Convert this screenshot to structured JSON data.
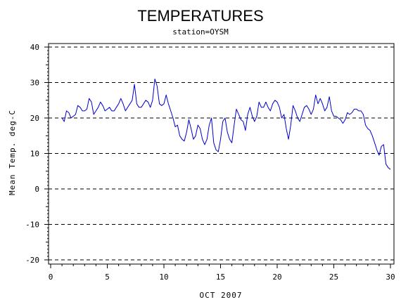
{
  "chart_data": {
    "type": "line",
    "title": "TEMPERATURES",
    "subtitle": "station=OYSM",
    "xlabel": "OCT 2007",
    "ylabel": "Mean Temp. deg-C",
    "xlim": [
      0,
      30
    ],
    "ylim": [
      -20,
      40
    ],
    "x_ticks": [
      0,
      5,
      10,
      15,
      20,
      25,
      30
    ],
    "y_ticks": [
      -20,
      -10,
      0,
      10,
      20,
      30,
      40
    ],
    "grid": "horizontal dashed at every 10 deg",
    "line_color": "#0000cc",
    "series": [
      {
        "x": [
          1.0,
          1.2,
          1.4,
          1.6,
          1.8,
          2.0,
          2.2,
          2.4,
          2.6,
          2.8,
          3.0,
          3.2,
          3.4,
          3.6,
          3.8,
          4.0,
          4.2,
          4.4,
          4.6,
          4.8,
          5.0,
          5.2,
          5.4,
          5.6,
          5.8,
          6.0,
          6.2,
          6.4,
          6.6,
          6.8,
          7.0,
          7.2,
          7.4,
          7.6,
          7.8,
          8.0,
          8.2,
          8.4,
          8.6,
          8.8,
          9.0,
          9.2,
          9.4,
          9.6,
          9.8,
          10.0,
          10.2,
          10.4,
          10.6,
          10.8,
          11.0,
          11.2,
          11.4,
          11.6,
          11.8,
          12.0,
          12.2,
          12.4,
          12.6,
          12.8,
          13.0,
          13.2,
          13.4,
          13.6,
          13.8,
          14.0,
          14.2,
          14.4,
          14.6,
          14.8,
          15.0,
          15.2,
          15.4,
          15.6,
          15.8,
          16.0,
          16.2,
          16.4,
          16.6,
          16.8,
          17.0,
          17.2,
          17.4,
          17.6,
          17.8,
          18.0,
          18.2,
          18.4,
          18.6,
          18.8,
          19.0,
          19.2,
          19.4,
          19.6,
          19.8,
          20.0,
          20.2,
          20.4,
          20.6,
          20.8,
          21.0,
          21.2,
          21.4,
          21.6,
          21.8,
          22.0,
          22.2,
          22.4,
          22.6,
          22.8,
          23.0,
          23.2,
          23.4,
          23.6,
          23.8,
          24.0,
          24.2,
          24.4,
          24.6,
          24.8,
          25.0,
          25.2,
          25.4,
          25.6,
          25.8,
          26.0,
          26.2,
          26.4,
          26.6,
          26.8,
          27.0,
          27.2,
          27.4,
          27.6,
          27.8,
          28.0,
          28.2,
          28.4,
          28.6,
          28.8,
          29.0,
          29.2,
          29.4,
          29.6,
          29.8,
          30.0
        ],
        "y": [
          20.0,
          19.0,
          22.0,
          21.5,
          20.0,
          20.5,
          21.0,
          23.5,
          23.0,
          22.0,
          22.0,
          22.5,
          25.5,
          24.5,
          21.0,
          22.0,
          23.0,
          24.5,
          23.5,
          22.0,
          22.5,
          23.0,
          22.0,
          22.0,
          23.0,
          24.0,
          25.5,
          24.0,
          22.0,
          23.0,
          24.0,
          25.0,
          29.5,
          24.0,
          23.0,
          23.0,
          24.0,
          25.0,
          24.5,
          23.0,
          25.0,
          31.0,
          29.0,
          24.0,
          23.5,
          24.0,
          26.5,
          24.0,
          22.0,
          20.0,
          17.5,
          18.0,
          15.0,
          14.0,
          13.5,
          16.0,
          19.5,
          17.0,
          14.0,
          15.0,
          18.0,
          17.0,
          14.0,
          12.5,
          14.0,
          18.0,
          20.0,
          13.0,
          11.0,
          10.5,
          14.0,
          19.0,
          20.0,
          16.0,
          14.0,
          13.0,
          18.0,
          22.5,
          21.0,
          19.5,
          19.0,
          16.5,
          21.0,
          23.0,
          20.5,
          19.0,
          20.5,
          24.5,
          23.0,
          23.0,
          24.5,
          23.0,
          22.0,
          24.0,
          25.0,
          24.5,
          23.0,
          20.0,
          21.0,
          17.0,
          14.0,
          18.0,
          23.5,
          22.0,
          20.0,
          19.0,
          21.0,
          23.0,
          23.5,
          22.5,
          21.0,
          22.5,
          26.5,
          24.0,
          25.5,
          24.0,
          22.0,
          23.0,
          26.0,
          22.0,
          20.5,
          20.5,
          20.0,
          19.5,
          18.5,
          19.5,
          21.5,
          21.0,
          21.5,
          22.5,
          22.5,
          22.0,
          22.0,
          21.0,
          18.0,
          17.0,
          16.5,
          15.0,
          13.0,
          11.0,
          9.5,
          12.0,
          12.5,
          7.0,
          6.0,
          5.5
        ]
      }
    ]
  }
}
